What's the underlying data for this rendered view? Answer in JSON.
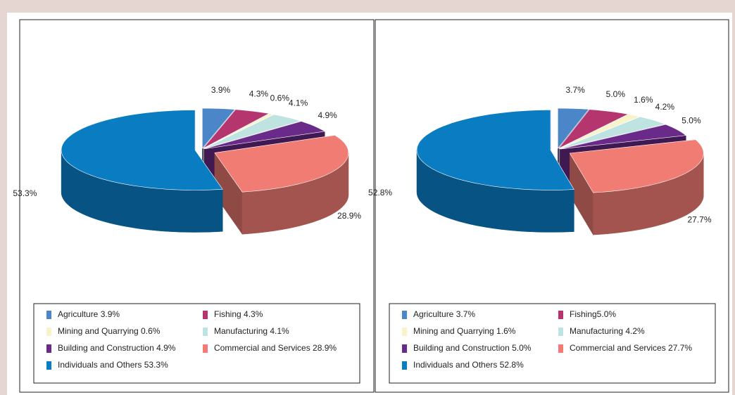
{
  "chart_data": [
    {
      "type": "pie3d",
      "categories": [
        "Agriculture 3.9%",
        "Fishing 4.3%",
        "Mining and Quarrying 0.6%",
        "Manufacturing 4.1%",
        "Building and Construction 4.9%",
        "Commercial and Services 28.9%",
        "Individuals and Others 53.3%"
      ],
      "values": [
        3.9,
        4.3,
        0.6,
        4.1,
        4.9,
        28.9,
        53.3
      ],
      "value_labels": [
        "3.9%",
        "4.3%",
        "0.6%",
        "4.1%",
        "4.9%",
        "28.9%",
        "53.3%"
      ],
      "colors": [
        "#4a86c8",
        "#b5356f",
        "#f8f3c8",
        "#bfe3e0",
        "#6a2a8a",
        "#f07c74",
        "#0a7cc2"
      ]
    },
    {
      "type": "pie3d",
      "categories": [
        "Agriculture 3.7%",
        "Fishing5.0%",
        "Mining and Quarrying 1.6%",
        "Manufacturing 4.2%",
        "Building and Construction 5.0%",
        "Commercial and Services 27.7%",
        "Individuals and Others 52.8%"
      ],
      "values": [
        3.7,
        5.0,
        1.6,
        4.2,
        5.0,
        27.7,
        52.8
      ],
      "value_labels": [
        "3.7%",
        "5.0%",
        "1.6%",
        "4.2%",
        "5.0%",
        "27.7%",
        "52.8%"
      ],
      "colors": [
        "#4a86c8",
        "#b5356f",
        "#f8f3c8",
        "#bfe3e0",
        "#6a2a8a",
        "#f07c74",
        "#0a7cc2"
      ]
    }
  ]
}
